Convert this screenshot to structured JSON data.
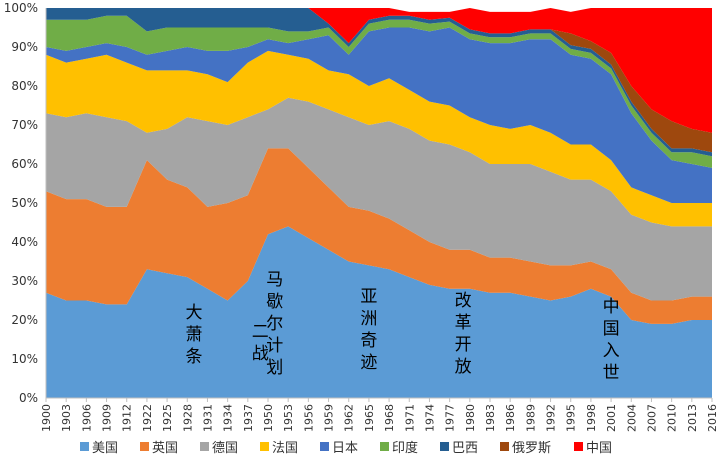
{
  "chart_data": {
    "type": "area",
    "stacked": true,
    "normalized": true,
    "title": "",
    "xlabel": "",
    "ylabel": "",
    "ylim": [
      0,
      100
    ],
    "y_ticks": [
      "0%",
      "10%",
      "20%",
      "30%",
      "40%",
      "50%",
      "60%",
      "70%",
      "80%",
      "90%",
      "100%"
    ],
    "x": [
      1900,
      1903,
      1906,
      1909,
      1912,
      1922,
      1925,
      1928,
      1931,
      1934,
      1937,
      1950,
      1953,
      1956,
      1959,
      1962,
      1965,
      1968,
      1971,
      1974,
      1977,
      1980,
      1983,
      1986,
      1989,
      1992,
      1995,
      1998,
      2001,
      2004,
      2007,
      2010,
      2013,
      2016
    ],
    "x_tick_labels": [
      "1900",
      "1903",
      "1906",
      "1909",
      "1912",
      "1922",
      "1925",
      "1928",
      "1931",
      "1934",
      "1937",
      "1950",
      "1953",
      "1956",
      "1959",
      "1962",
      "1965",
      "1968",
      "1971",
      "1974",
      "1977",
      "1980",
      "1983",
      "1986",
      "1989",
      "1992",
      "1995",
      "1998",
      "2001",
      "2004",
      "2007",
      "2010",
      "2013",
      "2016"
    ],
    "series": [
      {
        "name": "美国",
        "color": "#5B9BD5",
        "values": [
          27,
          25,
          25,
          24,
          24,
          33,
          32,
          31,
          28,
          25,
          30,
          42,
          44,
          41,
          38,
          35,
          34,
          33,
          31,
          29,
          28,
          28,
          27,
          27,
          26,
          25,
          26,
          28,
          26,
          20,
          19,
          19,
          20,
          20
        ]
      },
      {
        "name": "英国",
        "color": "#ED7D31",
        "values": [
          26,
          26,
          26,
          25,
          25,
          28,
          24,
          23,
          21,
          25,
          22,
          22,
          20,
          18,
          16,
          14,
          14,
          13,
          12,
          11,
          10,
          10,
          9,
          9,
          9,
          9,
          8,
          7,
          7,
          7,
          6,
          6,
          6,
          6
        ]
      },
      {
        "name": "德国",
        "color": "#A5A5A5",
        "values": [
          20,
          21,
          22,
          23,
          22,
          7,
          13,
          18,
          22,
          20,
          20,
          10,
          13,
          17,
          20,
          23,
          22,
          25,
          26,
          26,
          27,
          25,
          24,
          24,
          25,
          24,
          22,
          21,
          20,
          20,
          20,
          19,
          18,
          18
        ]
      },
      {
        "name": "法国",
        "color": "#FFC000",
        "values": [
          15,
          14,
          14,
          16,
          15,
          16,
          15,
          12,
          12,
          11,
          14,
          15,
          11,
          11,
          10,
          11,
          10,
          11,
          10,
          10,
          10,
          9,
          10,
          9,
          10,
          10,
          9,
          9,
          8,
          7,
          7,
          6,
          6,
          6
        ]
      },
      {
        "name": "日本",
        "color": "#4472C4",
        "values": [
          2,
          3,
          3,
          3,
          4,
          4,
          5,
          6,
          6,
          8,
          4,
          3,
          3,
          5,
          9,
          5,
          14,
          13,
          16,
          18,
          20,
          20,
          21,
          22,
          22,
          24,
          23,
          22,
          22,
          19,
          14,
          11,
          10,
          9
        ]
      },
      {
        "name": "印度",
        "color": "#70AD47",
        "values": [
          7,
          8,
          7,
          7,
          8,
          6,
          6,
          5,
          6,
          6,
          5,
          3,
          3,
          2,
          2,
          2,
          2,
          2,
          2,
          2,
          1.5,
          1.5,
          1.5,
          1.5,
          1.5,
          1.5,
          1.5,
          1.5,
          1.5,
          2,
          2,
          2,
          3,
          3
        ]
      },
      {
        "name": "巴西",
        "color": "#255E91",
        "values": [
          3,
          3,
          3,
          2,
          2,
          6,
          5,
          5,
          5,
          5,
          5,
          5,
          6,
          6,
          1,
          1,
          1,
          1,
          1,
          1,
          1,
          1,
          1,
          1,
          1,
          1,
          1,
          1,
          1,
          1,
          1,
          1,
          1,
          1
        ]
      },
      {
        "name": "俄罗斯",
        "color": "#9E480E",
        "values": [
          0,
          0,
          0,
          0,
          0,
          0,
          0,
          0,
          0,
          0,
          0,
          0,
          0,
          0,
          0,
          0,
          0,
          0,
          0,
          0,
          0,
          0,
          0,
          0,
          0,
          0,
          3,
          2,
          3,
          4,
          5,
          7,
          5,
          5
        ]
      },
      {
        "name": "中国",
        "color": "#FF0000",
        "values": [
          0,
          0,
          0,
          0,
          0,
          0,
          0,
          0,
          0,
          0,
          0,
          0,
          0,
          0,
          4,
          9,
          3,
          2,
          1,
          2,
          1.5,
          5.5,
          5.5,
          5.5,
          4.5,
          5.5,
          5.5,
          8.5,
          11.5,
          20,
          26,
          29,
          31,
          32
        ]
      }
    ],
    "annotations": [
      {
        "text": "大萧条",
        "year": 1929
      },
      {
        "text": "二战",
        "year": 1945
      },
      {
        "text": "马歇尔计划",
        "year": 1951
      },
      {
        "text": "亚洲奇迹",
        "year": 1965
      },
      {
        "text": "改革开放",
        "year": 1979
      },
      {
        "text": "中国入世",
        "year": 2001
      }
    ],
    "legend_position": "bottom",
    "grid": false
  }
}
